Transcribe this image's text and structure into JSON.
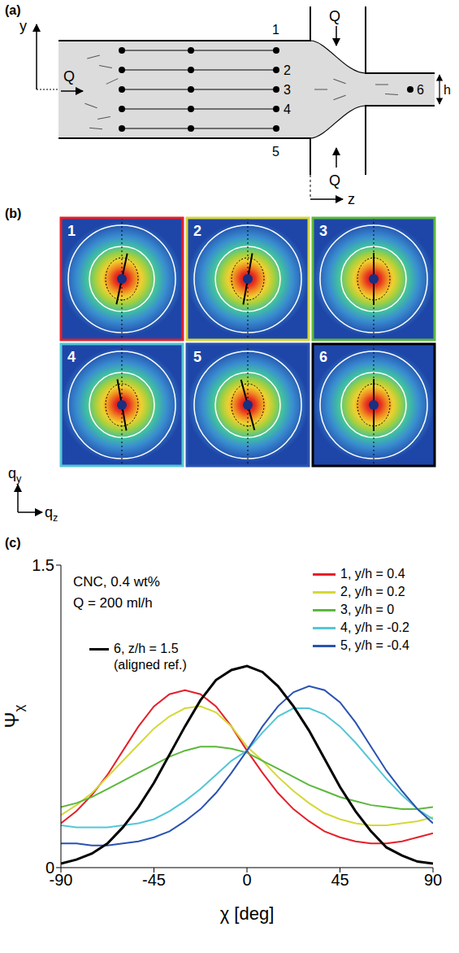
{
  "panel_labels": [
    "(a)",
    "(b)",
    "(c)"
  ],
  "diagram": {
    "y_axis": "y",
    "z_axis": "z",
    "flow": "Q",
    "height": "h",
    "points": [
      "1",
      "2",
      "3",
      "4",
      "5",
      "6"
    ]
  },
  "images": {
    "x_axis": "qz",
    "y_axis": "qy",
    "items": [
      {
        "label": "1",
        "director_deg": 12
      },
      {
        "label": "2",
        "director_deg": 10
      },
      {
        "label": "3",
        "director_deg": 0
      },
      {
        "label": "4",
        "director_deg": -10
      },
      {
        "label": "5",
        "director_deg": -15
      },
      {
        "label": "6",
        "director_deg": 0
      }
    ]
  },
  "chart_data": {
    "type": "line",
    "xlabel": "χ [deg]",
    "ylabel": "Ψχ",
    "annotations": [
      "CNC, 0.4 wt%",
      "Q = 200 ml/h"
    ],
    "xlim": [
      -90,
      90
    ],
    "xticks": [
      -90,
      -45,
      0,
      45,
      90
    ],
    "ylim": [
      0,
      1.5
    ],
    "yticks": [
      0,
      1.5
    ],
    "grid": false,
    "legend": "top right",
    "x": [
      -90,
      -82.5,
      -75,
      -67.5,
      -60,
      -52.5,
      -45,
      -37.5,
      -30,
      -22.5,
      -15,
      -7.5,
      0,
      7.5,
      15,
      22.5,
      30,
      37.5,
      45,
      52.5,
      60,
      67.5,
      75,
      82.5,
      90
    ],
    "series": [
      {
        "name": "1, y/h = 0.4",
        "color": "#e4202a",
        "line_style": "solid",
        "values": [
          0.22,
          0.28,
          0.36,
          0.46,
          0.58,
          0.7,
          0.8,
          0.86,
          0.88,
          0.86,
          0.8,
          0.7,
          0.58,
          0.47,
          0.37,
          0.29,
          0.23,
          0.18,
          0.15,
          0.13,
          0.12,
          0.12,
          0.13,
          0.15,
          0.17
        ]
      },
      {
        "name": "2, y/h = 0.2",
        "color": "#d4d838",
        "line_style": "solid",
        "values": [
          0.26,
          0.31,
          0.37,
          0.45,
          0.53,
          0.61,
          0.69,
          0.75,
          0.79,
          0.8,
          0.77,
          0.7,
          0.6,
          0.53,
          0.45,
          0.38,
          0.32,
          0.27,
          0.24,
          0.22,
          0.21,
          0.21,
          0.22,
          0.23,
          0.25
        ]
      },
      {
        "name": "3, y/h = 0",
        "color": "#5cb83c",
        "line_style": "solid",
        "values": [
          0.3,
          0.32,
          0.35,
          0.39,
          0.43,
          0.47,
          0.51,
          0.55,
          0.58,
          0.6,
          0.6,
          0.59,
          0.57,
          0.53,
          0.49,
          0.45,
          0.41,
          0.38,
          0.35,
          0.33,
          0.31,
          0.3,
          0.29,
          0.29,
          0.3
        ]
      },
      {
        "name": "4, y/h = -0.2",
        "color": "#54c6d6",
        "line_style": "solid",
        "values": [
          0.21,
          0.2,
          0.2,
          0.2,
          0.21,
          0.22,
          0.24,
          0.28,
          0.33,
          0.39,
          0.46,
          0.53,
          0.58,
          0.67,
          0.75,
          0.79,
          0.79,
          0.76,
          0.7,
          0.62,
          0.53,
          0.44,
          0.36,
          0.29,
          0.24
        ]
      },
      {
        "name": "5, y/h = -0.4",
        "color": "#2a52b0",
        "line_style": "solid",
        "values": [
          0.12,
          0.12,
          0.11,
          0.11,
          0.12,
          0.13,
          0.15,
          0.18,
          0.23,
          0.29,
          0.37,
          0.47,
          0.58,
          0.7,
          0.8,
          0.87,
          0.9,
          0.88,
          0.82,
          0.72,
          0.6,
          0.48,
          0.38,
          0.29,
          0.22
        ]
      },
      {
        "name": "6, z/h = 1.5 (aligned ref.)",
        "color": "#000000",
        "line_style": "solid",
        "values": [
          0.02,
          0.04,
          0.07,
          0.12,
          0.2,
          0.3,
          0.42,
          0.56,
          0.7,
          0.83,
          0.93,
          0.98,
          1.0,
          0.97,
          0.9,
          0.8,
          0.68,
          0.54,
          0.4,
          0.28,
          0.18,
          0.1,
          0.06,
          0.03,
          0.02
        ]
      }
    ]
  }
}
